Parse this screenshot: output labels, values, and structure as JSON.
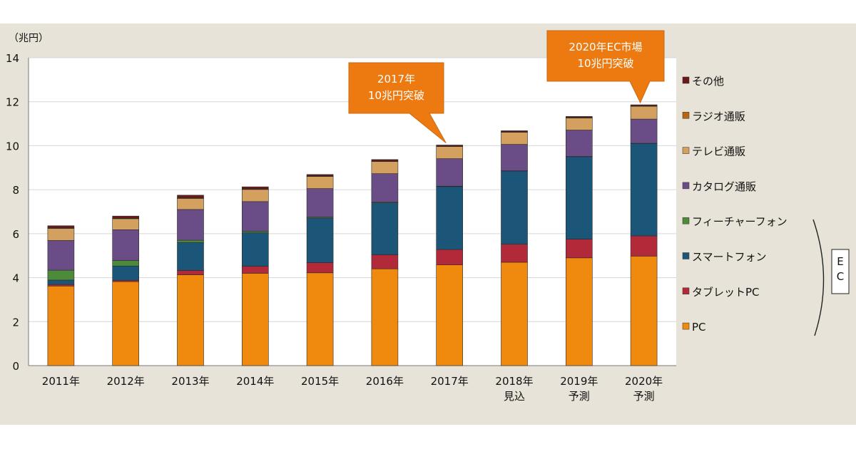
{
  "chart_data": {
    "type": "bar",
    "stacked": true,
    "ylabel": "（兆円）",
    "ylim": [
      0,
      14
    ],
    "yticks": [
      "0",
      "2",
      "4",
      "6",
      "8",
      "10",
      "12",
      "14"
    ],
    "grid": true,
    "legend_position": "right",
    "categories": [
      [
        "2011年"
      ],
      [
        "2012年"
      ],
      [
        "2013年"
      ],
      [
        "2014年"
      ],
      [
        "2015年"
      ],
      [
        "2016年"
      ],
      [
        "2017年"
      ],
      [
        "2018年",
        "見込"
      ],
      [
        "2019年",
        "予測"
      ],
      [
        "2020年",
        "予測"
      ]
    ],
    "series": [
      {
        "name": "PC",
        "color": "#f08a0e",
        "values": [
          3.62,
          3.82,
          4.13,
          4.2,
          4.22,
          4.4,
          4.58,
          4.7,
          4.9,
          4.98
        ]
      },
      {
        "name": "タブレットPC",
        "color": "#b22a3a",
        "values": [
          0.07,
          0.06,
          0.2,
          0.32,
          0.46,
          0.64,
          0.7,
          0.82,
          0.85,
          0.92
        ]
      },
      {
        "name": "スマートフォン",
        "color": "#1b5577",
        "values": [
          0.2,
          0.65,
          1.27,
          1.52,
          2.03,
          2.36,
          2.86,
          3.33,
          3.75,
          4.2
        ]
      },
      {
        "name": "フィーチャーフォン",
        "color": "#4d8a3a",
        "values": [
          0.45,
          0.25,
          0.1,
          0.07,
          0.04,
          0.03,
          0.02,
          0.01,
          0.01,
          0.01
        ]
      },
      {
        "name": "カタログ通販",
        "color": "#6a4d86",
        "values": [
          1.35,
          1.4,
          1.4,
          1.35,
          1.3,
          1.3,
          1.25,
          1.2,
          1.2,
          1.1
        ]
      },
      {
        "name": "テレビ通販",
        "color": "#d4a060",
        "values": [
          0.55,
          0.5,
          0.5,
          0.55,
          0.55,
          0.55,
          0.55,
          0.55,
          0.55,
          0.58
        ]
      },
      {
        "name": "ラジオ通販",
        "color": "#b8650f",
        "values": [
          0.02,
          0.02,
          0.03,
          0.02,
          0.02,
          0.02,
          0.02,
          0.02,
          0.02,
          0.02
        ]
      },
      {
        "name": "その他",
        "color": "#6b1a1a",
        "values": [
          0.1,
          0.1,
          0.12,
          0.1,
          0.07,
          0.07,
          0.05,
          0.05,
          0.05,
          0.05
        ]
      }
    ],
    "legend_order": [
      "その他",
      "ラジオ通販",
      "テレビ通販",
      "カタログ通販",
      "フィーチャーフォン",
      "スマートフォン",
      "タブレットPC",
      "PC"
    ],
    "bracket_label": [
      "E",
      "C"
    ],
    "annotations": [
      {
        "lines": [
          "2017年",
          "10兆円突破"
        ],
        "target_index": 6,
        "color": "#ec7a10"
      },
      {
        "lines": [
          "2020年EC市場",
          "10兆円突破"
        ],
        "target_index": 9,
        "color": "#ec7a10"
      }
    ]
  }
}
